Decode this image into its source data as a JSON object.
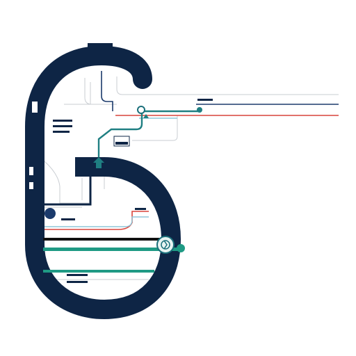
{
  "diagram": {
    "title": "",
    "colors": {
      "background": "#ffffff",
      "navy": "#0e2545",
      "teal": "#1f9a84",
      "teal_dark": "#1a6f7a",
      "red": "#d9443a",
      "light_blue": "#8fc6d9",
      "grey_line": "#bfc4c9",
      "black": "#111111"
    },
    "icons": {
      "station_marker": "compass-icon",
      "junction_marker": "arrow-junction-icon",
      "terminal_dot": "dot-icon"
    }
  }
}
